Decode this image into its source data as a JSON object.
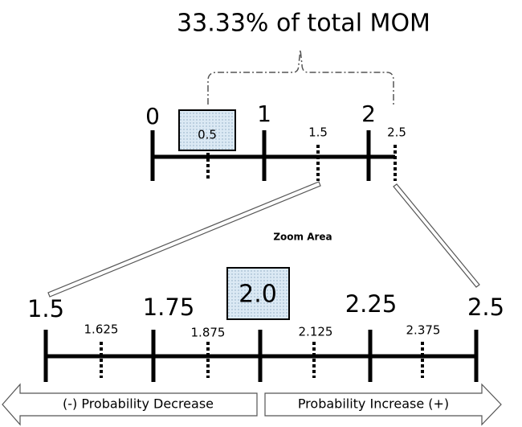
{
  "title": "33.33% of total MOM",
  "top_scale": {
    "major_labels": [
      "0",
      "1",
      "2"
    ],
    "minor_labels": [
      "1.5",
      "2.5"
    ],
    "highlight": "0.5"
  },
  "zoom_label": "Zoom Area",
  "bottom_scale": {
    "major_labels": [
      "1.5",
      "1.75",
      "2.25",
      "2.5"
    ],
    "minor_labels": [
      "1.625",
      "1.875",
      "2.125",
      "2.375"
    ],
    "highlight": "2.0"
  },
  "arrows": {
    "left": "(-) Probability Decrease",
    "right": "Probability Increase (+)"
  }
}
